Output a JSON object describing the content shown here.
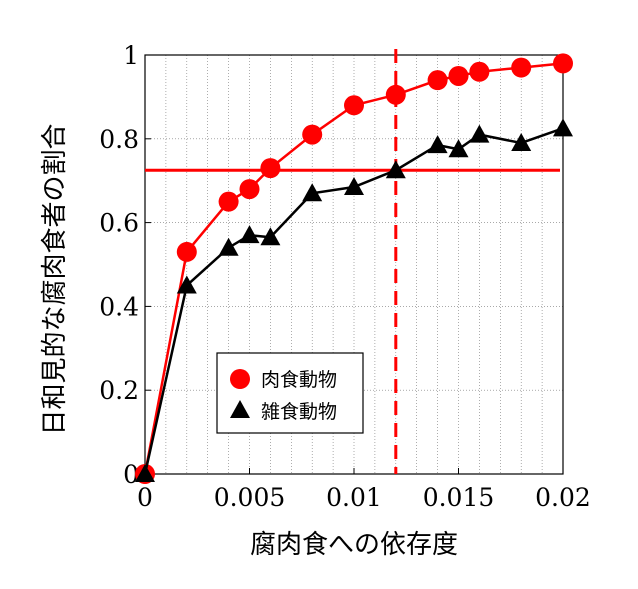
{
  "chart_data": {
    "type": "line",
    "xlabel": "腐肉食への依存度",
    "ylabel": "日和見的な腐肉食者の割合",
    "xlim": [
      0,
      0.02
    ],
    "ylim": [
      0,
      1
    ],
    "x_ticks": [
      "0",
      "0.005",
      "0.01",
      "0.015",
      "0.02"
    ],
    "y_ticks": [
      "0",
      "0.2",
      "0.4",
      "0.6",
      "0.8",
      "1"
    ],
    "grid": true,
    "legend_position": "lower-center",
    "series": [
      {
        "name": "肉食動物",
        "color": "#ff0000",
        "marker": "circle",
        "x": [
          0,
          0.002,
          0.004,
          0.005,
          0.006,
          0.008,
          0.01,
          0.012,
          0.014,
          0.015,
          0.016,
          0.018,
          0.02
        ],
        "y": [
          0,
          0.53,
          0.65,
          0.68,
          0.73,
          0.81,
          0.88,
          0.905,
          0.94,
          0.95,
          0.96,
          0.97,
          0.98
        ]
      },
      {
        "name": "雑食動物",
        "color": "#000000",
        "marker": "triangle",
        "x": [
          0,
          0.002,
          0.004,
          0.005,
          0.006,
          0.008,
          0.01,
          0.012,
          0.014,
          0.015,
          0.016,
          0.018,
          0.02
        ],
        "y": [
          0,
          0.45,
          0.54,
          0.57,
          0.565,
          0.67,
          0.685,
          0.725,
          0.785,
          0.775,
          0.81,
          0.79,
          0.825
        ]
      }
    ],
    "reference_lines": [
      {
        "orientation": "horizontal",
        "value": 0.725,
        "color": "#ff0000",
        "style": "solid"
      },
      {
        "orientation": "vertical",
        "value": 0.012,
        "color": "#ff0000",
        "style": "dashed"
      }
    ]
  }
}
